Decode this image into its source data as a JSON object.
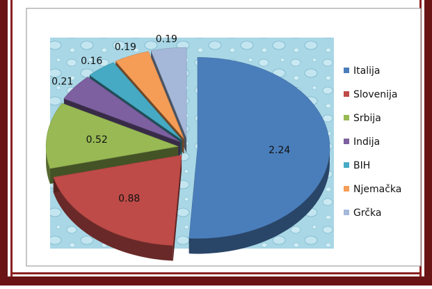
{
  "colors": {
    "frame_outer": "#6b1416",
    "frame_inner": "#8a1f20",
    "chart_border": "#8e8e8e",
    "plot_background": "#a9d7e6"
  },
  "chart_data": {
    "type": "pie",
    "title": "",
    "categories": [
      "Italija",
      "Slovenija",
      "Srbija",
      "Indija",
      "BIH",
      "Njemačka",
      "Grčka"
    ],
    "values": [
      2.24,
      0.88,
      0.52,
      0.21,
      0.16,
      0.19,
      0.19
    ],
    "value_labels": [
      "2.24",
      "0.88",
      "0.52",
      "0.21",
      "0.16",
      "0.19",
      "0.19"
    ],
    "colors": [
      "#4a7ebb",
      "#be4b48",
      "#98b954",
      "#7d60a0",
      "#46aac4",
      "#f59d56",
      "#a5b8da"
    ],
    "exploded": true,
    "three_d": true,
    "legend_position": "right",
    "grid": false
  }
}
